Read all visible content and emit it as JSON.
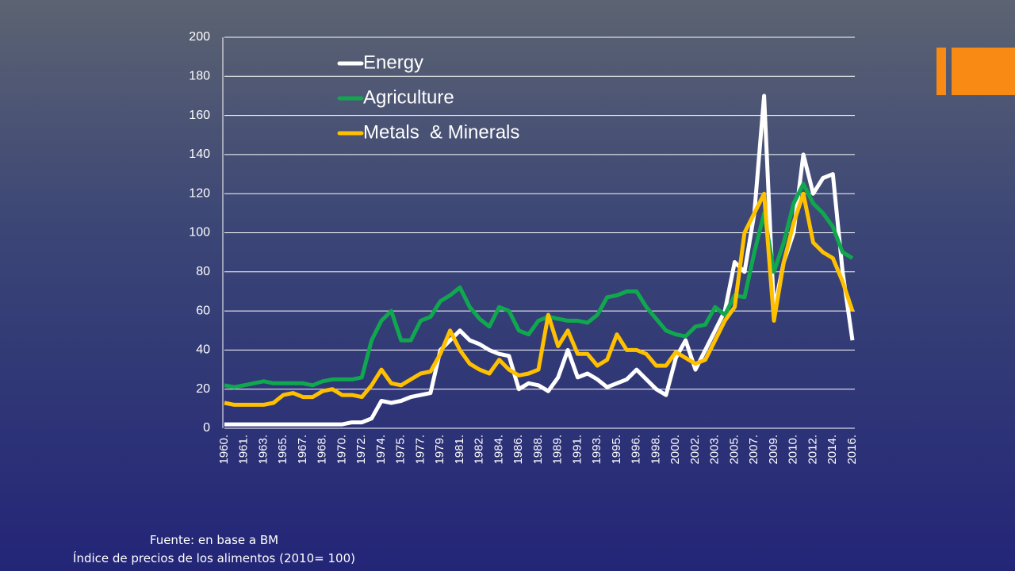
{
  "chart_data": {
    "type": "line",
    "categories": [
      "1960.",
      null,
      "1961.",
      null,
      "1963.",
      null,
      "1965.",
      null,
      "1967.",
      null,
      "1968.",
      null,
      "1970.",
      null,
      "1972.",
      null,
      "1974.",
      null,
      "1975.",
      null,
      "1977.",
      null,
      "1979.",
      null,
      "1981.",
      null,
      "1982.",
      null,
      "1984.",
      null,
      "1986.",
      null,
      "1988.",
      null,
      "1989.",
      null,
      "1991.",
      null,
      "1993.",
      null,
      "1995.",
      null,
      "1996.",
      null,
      "1998.",
      null,
      "2000.",
      null,
      "2002.",
      null,
      "2003.",
      null,
      "2005.",
      null,
      "2007.",
      null,
      "2009.",
      null,
      "2010.",
      null,
      "2012.",
      null,
      "2014.",
      null,
      "2016."
    ],
    "series": [
      {
        "name": "Energy",
        "color": "#ffffff",
        "values": [
          2,
          2,
          2,
          2,
          2,
          2,
          2,
          2,
          2,
          2,
          2,
          2,
          2,
          3,
          3,
          5,
          14,
          13,
          14,
          16,
          17,
          18,
          40,
          45,
          50,
          45,
          43,
          40,
          38,
          37,
          20,
          23,
          22,
          19,
          26,
          40,
          26,
          28,
          25,
          21,
          23,
          25,
          30,
          25,
          20,
          17,
          36,
          45,
          30,
          40,
          50,
          60,
          85,
          80,
          110,
          170,
          60,
          85,
          100,
          140,
          120,
          128,
          130,
          80,
          45
        ]
      },
      {
        "name": "Agriculture",
        "color": "#10a84e",
        "values": [
          22,
          21,
          22,
          23,
          24,
          23,
          23,
          23,
          23,
          22,
          24,
          25,
          25,
          25,
          26,
          45,
          55,
          60,
          45,
          45,
          55,
          57,
          65,
          68,
          72,
          62,
          56,
          52,
          62,
          60,
          50,
          48,
          55,
          57,
          56,
          55,
          55,
          54,
          58,
          67,
          68,
          70,
          70,
          62,
          56,
          50,
          48,
          47,
          52,
          53,
          62,
          58,
          68,
          67,
          90,
          110,
          80,
          95,
          115,
          125,
          115,
          110,
          103,
          90,
          87
        ]
      },
      {
        "name": "Metals  & Minerals",
        "color": "#ffc000",
        "values": [
          13,
          12,
          12,
          12,
          12,
          13,
          17,
          18,
          16,
          16,
          19,
          20,
          17,
          17,
          16,
          22,
          30,
          23,
          22,
          25,
          28,
          29,
          38,
          50,
          40,
          33,
          30,
          28,
          35,
          30,
          27,
          28,
          30,
          58,
          42,
          50,
          38,
          38,
          32,
          35,
          48,
          40,
          40,
          38,
          32,
          32,
          39,
          36,
          33,
          35,
          45,
          55,
          62,
          100,
          110,
          120,
          55,
          85,
          105,
          120,
          95,
          90,
          87,
          75,
          60
        ]
      }
    ],
    "ylim": [
      0,
      200
    ],
    "yticks": [
      0,
      20,
      40,
      60,
      80,
      100,
      120,
      140,
      160,
      180,
      200
    ],
    "grid": true,
    "legend": "top-left"
  },
  "footer": {
    "source": "Fuente: en base a BM",
    "note": "Índice de precios de los alimentos (2010= 100)"
  }
}
